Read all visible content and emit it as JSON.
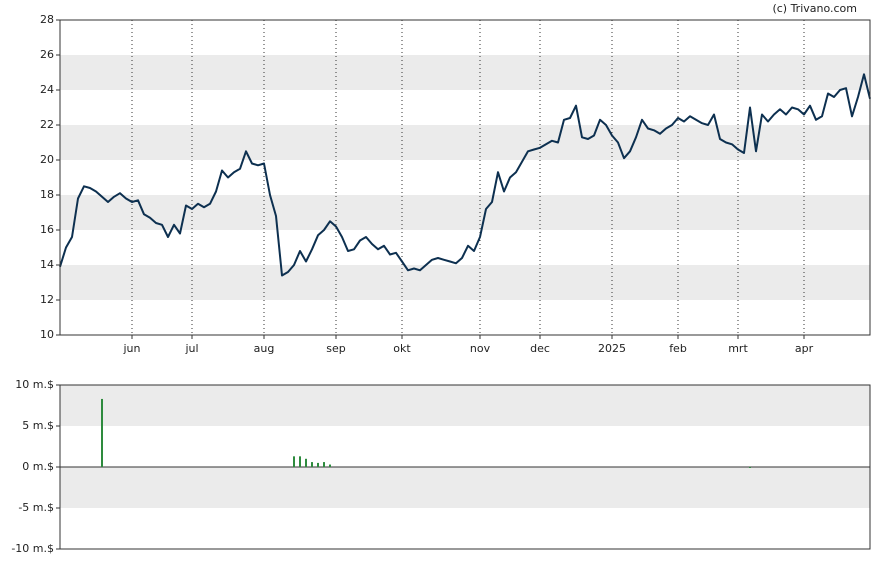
{
  "chart_data": [
    {
      "type": "line",
      "credit": "(c) Trivano.com",
      "color": "#0d3050",
      "categories": [
        null,
        null,
        null,
        null,
        null,
        null,
        null,
        null,
        null,
        null,
        null,
        null,
        "jun",
        null,
        null,
        null,
        null,
        null,
        null,
        null,
        null,
        null,
        "jul",
        null,
        null,
        null,
        null,
        null,
        null,
        null,
        null,
        null,
        null,
        null,
        "aug",
        null,
        null,
        null,
        null,
        null,
        null,
        null,
        null,
        null,
        null,
        null,
        "sep",
        null,
        null,
        null,
        null,
        null,
        null,
        null,
        null,
        null,
        null,
        "okt",
        null,
        null,
        null,
        null,
        null,
        null,
        null,
        null,
        null,
        null,
        null,
        null,
        "nov",
        null,
        null,
        null,
        null,
        null,
        null,
        null,
        null,
        null,
        "dec",
        null,
        null,
        null,
        null,
        null,
        null,
        null,
        null,
        null,
        null,
        null,
        "2025",
        null,
        null,
        null,
        null,
        null,
        null,
        null,
        null,
        null,
        null,
        "feb",
        null,
        null,
        null,
        null,
        null,
        null,
        null,
        null,
        null,
        "mrt",
        null,
        null,
        null,
        null,
        null,
        null,
        null,
        null,
        null,
        null,
        "apr",
        null,
        null,
        null,
        null,
        null,
        null,
        null,
        null,
        null,
        null,
        null
      ],
      "values": [
        13.9,
        15.0,
        15.6,
        17.8,
        18.5,
        18.4,
        18.2,
        17.9,
        17.6,
        17.9,
        18.1,
        17.8,
        17.6,
        17.7,
        16.9,
        16.7,
        16.4,
        16.3,
        15.6,
        16.3,
        15.8,
        17.4,
        17.2,
        17.5,
        17.3,
        17.5,
        18.2,
        19.4,
        19.0,
        19.3,
        19.5,
        20.5,
        19.8,
        19.7,
        19.8,
        18.0,
        16.8,
        13.4,
        13.6,
        14.0,
        14.8,
        14.2,
        14.9,
        15.7,
        16.0,
        16.5,
        16.2,
        15.6,
        14.8,
        14.9,
        15.4,
        15.6,
        15.2,
        14.9,
        15.1,
        14.6,
        14.7,
        14.2,
        13.7,
        13.8,
        13.7,
        14.0,
        14.3,
        14.4,
        14.3,
        14.2,
        14.1,
        14.4,
        15.1,
        14.8,
        15.6,
        17.2,
        17.6,
        19.3,
        18.2,
        19.0,
        19.3,
        19.9,
        20.5,
        20.6,
        20.7,
        20.9,
        21.1,
        21.0,
        22.3,
        22.4,
        23.1,
        21.3,
        21.2,
        21.4,
        22.3,
        22.0,
        21.4,
        21.0,
        20.1,
        20.5,
        21.3,
        22.3,
        21.8,
        21.7,
        21.5,
        21.8,
        22.0,
        22.4,
        22.2,
        22.5,
        22.3,
        22.1,
        22.0,
        22.6,
        21.2,
        21.0,
        20.9,
        20.6,
        20.4,
        23.0,
        20.5,
        22.6,
        22.2,
        22.6,
        22.9,
        22.6,
        23.0,
        22.9,
        22.6,
        23.1,
        22.3,
        22.5,
        23.8,
        23.6,
        24.0,
        24.1,
        22.5,
        23.6,
        24.9,
        23.5
      ],
      "ylim": [
        10,
        28
      ],
      "yticks": [
        10,
        12,
        14,
        16,
        18,
        20,
        22,
        24,
        26,
        28
      ],
      "bands": true
    },
    {
      "type": "bar",
      "color": "#2e8b3e",
      "values": [
        null,
        null,
        null,
        null,
        null,
        null,
        null,
        8.3,
        null,
        null,
        null,
        null,
        null,
        null,
        null,
        null,
        null,
        null,
        null,
        null,
        null,
        null,
        null,
        null,
        null,
        null,
        null,
        null,
        null,
        null,
        null,
        null,
        null,
        null,
        null,
        null,
        null,
        null,
        null,
        1.3,
        1.3,
        1.0,
        0.6,
        0.5,
        0.6,
        0.3,
        null,
        null,
        null,
        null,
        null,
        null,
        null,
        null,
        null,
        null,
        null,
        null,
        null,
        null,
        null,
        null,
        null,
        null,
        null,
        null,
        null,
        null,
        null,
        null,
        null,
        null,
        null,
        null,
        null,
        null,
        null,
        null,
        null,
        null,
        null,
        null,
        null,
        null,
        null,
        null,
        null,
        null,
        null,
        null,
        null,
        null,
        null,
        null,
        null,
        null,
        null,
        null,
        null,
        null,
        null,
        null,
        null,
        null,
        null,
        null,
        null,
        null,
        null,
        null,
        null,
        null,
        null,
        null,
        null,
        -0.1,
        null,
        null,
        null,
        null,
        null,
        null,
        null,
        null,
        null,
        null,
        null,
        null,
        null,
        null,
        null,
        null,
        null,
        null,
        null,
        null
      ],
      "ylim": [
        -10,
        10
      ],
      "yticks": [
        {
          "value": -10,
          "label": "-10 m.$"
        },
        {
          "value": -5,
          "label": "-5 m.$"
        },
        {
          "value": 0,
          "label": "0 m.$"
        },
        {
          "value": 5,
          "label": "5 m.$"
        },
        {
          "value": 10,
          "label": "10 m.$"
        }
      ],
      "bands": true
    }
  ]
}
